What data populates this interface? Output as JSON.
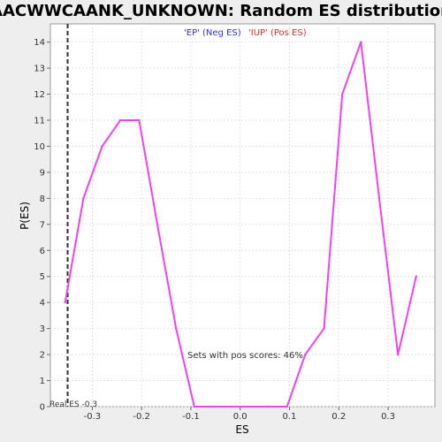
{
  "chart_data": {
    "type": "line",
    "title": "AACWWCAANK_UNKNOWN: Random ES distribution",
    "xlabel": "ES",
    "ylabel": "P(ES)",
    "xlim": [
      -0.385,
      0.395
    ],
    "ylim": [
      0,
      14.7
    ],
    "x_ticks": [
      -0.3,
      -0.2,
      -0.1,
      0.0,
      0.1,
      0.2,
      0.3
    ],
    "x_tick_labels": [
      "-0.3",
      "-0.2",
      "-0.1",
      "0.0",
      "0.1",
      "0.2",
      "0.3"
    ],
    "y_ticks": [
      0,
      1,
      2,
      3,
      4,
      5,
      6,
      7,
      8,
      9,
      10,
      11,
      12,
      13,
      14
    ],
    "y_tick_labels": [
      "0",
      "1",
      "2",
      "3",
      "4",
      "5",
      "6",
      "7",
      "8",
      "9",
      "10",
      "11",
      "12",
      "13",
      "14"
    ],
    "grid": true,
    "series": [
      {
        "color": "#ee44ee",
        "x": [
          -0.355,
          -0.318,
          -0.28,
          -0.243,
          -0.205,
          -0.168,
          -0.13,
          -0.093,
          -0.055,
          -0.018,
          0.02,
          0.057,
          0.095,
          0.132,
          0.17,
          0.207,
          0.245,
          0.282,
          0.32,
          0.357
        ],
        "y": [
          4,
          8,
          10,
          11,
          11,
          7,
          3,
          0,
          0,
          0,
          0,
          0,
          0,
          2,
          3,
          12,
          14,
          8,
          2,
          5
        ]
      }
    ],
    "legend": {
      "placement": "top-center",
      "neg_label": "'EP' (Neg ES)",
      "pos_label": "'IUP' (Pos ES)",
      "neg_color": "#3333cc",
      "pos_color": "#e03030"
    },
    "real_es": {
      "value": -0.35,
      "label": "Real ES -0.3"
    },
    "pos_scores_label": "Sets with pos scores: 46%"
  }
}
